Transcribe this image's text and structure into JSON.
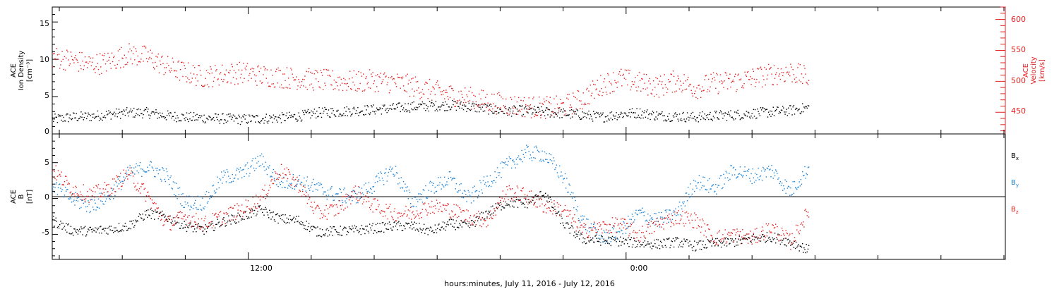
{
  "chart_data": [
    {
      "type": "scatter",
      "panel": "top",
      "ylabel_left": [
        "ACE",
        "Ion Density",
        "[cm⁻³]"
      ],
      "ylabel_right": [
        "ACE",
        "Velocity",
        "[km/s]"
      ],
      "left_ticks": [
        "0",
        "5",
        "10",
        "15"
      ],
      "right_ticks": [
        "450",
        "500",
        "550",
        "600"
      ],
      "ylim_left": [
        0,
        17
      ],
      "ylim_right": [
        415,
        620
      ],
      "series": [
        {
          "color": "#000000",
          "axis": "left",
          "x": [
            0,
            1,
            2,
            3,
            4,
            5,
            6,
            7,
            8,
            9,
            10,
            11,
            12,
            13,
            14,
            15,
            16,
            17,
            18,
            19,
            20,
            21,
            22,
            23,
            24,
            25,
            26,
            27,
            28,
            29,
            30,
            31,
            32,
            33,
            34,
            35,
            36,
            37,
            38,
            39,
            40
          ],
          "y": [
            2,
            2.3,
            2.4,
            2.7,
            2.9,
            2.9,
            2.5,
            2.3,
            2.2,
            2.1,
            2,
            2.1,
            2.2,
            2.4,
            2.9,
            3,
            3.2,
            3.3,
            3.5,
            3.7,
            3.8,
            3.9,
            3.7,
            3.4,
            3.1,
            3.2,
            3,
            2.8,
            2.6,
            2.3,
            2.7,
            2.9,
            2.5,
            2.4,
            2.3,
            2.5,
            2.6,
            2.8,
            3,
            3.2,
            3.6
          ]
        },
        {
          "color": "#e32020",
          "axis": "right",
          "x": [
            0,
            1,
            2,
            3,
            4,
            5,
            6,
            7,
            8,
            9,
            10,
            11,
            12,
            13,
            14,
            15,
            16,
            17,
            18,
            19,
            20,
            21,
            22,
            23,
            24,
            25,
            26,
            27,
            28,
            29,
            30,
            31,
            32,
            33,
            34,
            35,
            36,
            37,
            38,
            39,
            40
          ],
          "y": [
            540,
            535,
            528,
            532,
            545,
            540,
            525,
            515,
            508,
            512,
            515,
            510,
            508,
            505,
            503,
            501,
            500,
            502,
            499,
            493,
            486,
            479,
            474,
            468,
            463,
            460,
            458,
            460,
            472,
            495,
            505,
            498,
            492,
            502,
            490,
            498,
            500,
            506,
            512,
            516,
            505
          ]
        }
      ]
    },
    {
      "type": "scatter",
      "panel": "bottom",
      "ylabel": [
        "ACE",
        "B",
        "[nT]"
      ],
      "y_ticks": [
        "-5",
        "0",
        "5"
      ],
      "ylim": [
        -8.5,
        9
      ],
      "legend": [
        {
          "name": "B",
          "sub": "x",
          "color": "#000000"
        },
        {
          "name": "B",
          "sub": "y",
          "color": "#1a82d6"
        },
        {
          "name": "B",
          "sub": "z",
          "color": "#e32020"
        }
      ],
      "series": [
        {
          "color": "#000000",
          "x": [
            0,
            1,
            2,
            3,
            4,
            5,
            6,
            7,
            8,
            9,
            10,
            11,
            12,
            13,
            14,
            15,
            16,
            17,
            18,
            19,
            20,
            21,
            22,
            23,
            24,
            25,
            26,
            27,
            28,
            29,
            30,
            31,
            32,
            33,
            34,
            35,
            36,
            37,
            38,
            39,
            40
          ],
          "y": [
            -3,
            -4.4,
            -4.5,
            -4.2,
            -3.8,
            -2,
            -2.5,
            -3.8,
            -4.3,
            -3.2,
            -2.5,
            -1.5,
            -2.8,
            -3,
            -4.6,
            -4.5,
            -4.4,
            -4.1,
            -3.8,
            -3.8,
            -4.5,
            -3.5,
            -3.8,
            -1.9,
            -0.5,
            -0.7,
            0.8,
            -3.5,
            -5.6,
            -5.8,
            -5.9,
            -6.2,
            -6.3,
            -6,
            -6.6,
            -6.2,
            -6,
            -5.5,
            -5.3,
            -6,
            -7.2
          ]
        },
        {
          "color": "#1a82d6",
          "x": [
            0,
            1,
            2,
            3,
            4,
            5,
            6,
            7,
            8,
            9,
            10,
            11,
            12,
            13,
            14,
            15,
            16,
            17,
            18,
            19,
            20,
            21,
            22,
            23,
            24,
            25,
            26,
            27,
            28,
            29,
            30,
            31,
            32,
            33,
            34,
            35,
            36,
            37,
            38,
            39,
            40
          ],
          "y": [
            2,
            0,
            -1,
            0.5,
            3.5,
            4.5,
            3.2,
            -0.5,
            -0.5,
            3,
            3.5,
            5.4,
            2.3,
            2.5,
            1.5,
            0.5,
            0.3,
            2,
            4.2,
            -0.5,
            1.5,
            2.8,
            0,
            2.5,
            4.6,
            6.4,
            6.2,
            3,
            -3,
            -5.5,
            -4.5,
            -2,
            -3,
            -2,
            2.5,
            1.5,
            4,
            3.2,
            4,
            1,
            4.5
          ]
        },
        {
          "color": "#e32020",
          "x": [
            0,
            1,
            2,
            3,
            4,
            5,
            6,
            7,
            8,
            9,
            10,
            11,
            12,
            13,
            14,
            15,
            16,
            17,
            18,
            19,
            20,
            21,
            22,
            23,
            24,
            25,
            26,
            27,
            28,
            29,
            30,
            31,
            32,
            33,
            34,
            35,
            36,
            37,
            38,
            39,
            40
          ],
          "y": [
            4,
            1.5,
            0.5,
            1.5,
            3.5,
            0.5,
            -3.5,
            -2.5,
            -3.5,
            -2.5,
            -1.5,
            0,
            4,
            2,
            -2,
            -1.5,
            1,
            -1,
            -2,
            -2,
            -1,
            -1.5,
            -2.5,
            -3,
            1,
            0.5,
            -1,
            -1.5,
            -4.5,
            -4,
            -3.5,
            -5,
            -3.5,
            -2.5,
            -3,
            -5.5,
            -5,
            -5.5,
            -4,
            -6,
            -1.5
          ]
        }
      ]
    }
  ],
  "x_axis": {
    "tick_labels": [
      "12:00",
      "0:00"
    ],
    "title": "hours:minutes, July 11, 2016 - July 12, 2016"
  }
}
